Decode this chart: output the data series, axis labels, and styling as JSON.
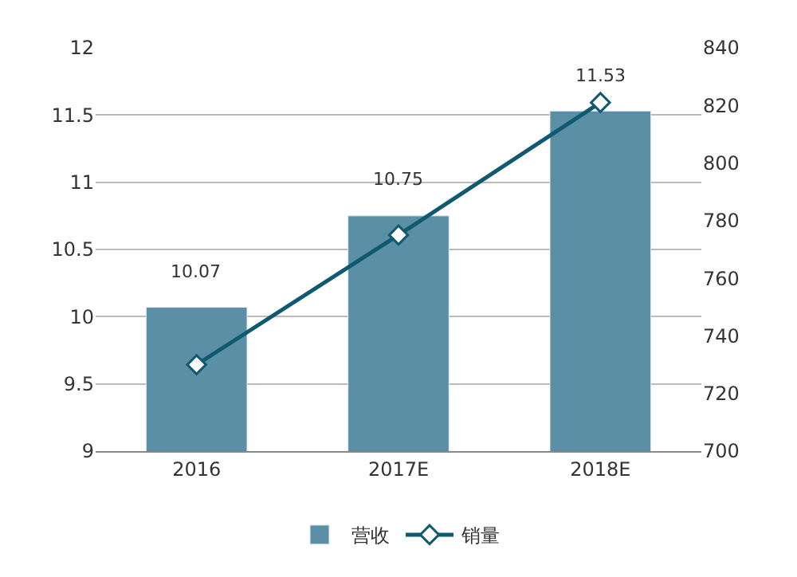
{
  "chart_data": {
    "type": "bar",
    "categories": [
      "2016",
      "2017E",
      "2018E"
    ],
    "series": [
      {
        "name": "营收",
        "color": "#5b8fa6",
        "values": [
          10.07,
          10.75,
          11.53
        ],
        "value_labels": [
          "10.07",
          "10.75",
          "11.53"
        ]
      },
      {
        "name": "销量",
        "type": "line",
        "axis": "y2",
        "color": "#0f5a70",
        "marker": "diamond",
        "values": [
          730,
          775,
          821
        ]
      }
    ],
    "ylim": [
      9,
      12
    ],
    "yticks": [
      9,
      9.5,
      10,
      10.5,
      11,
      11.5,
      12
    ],
    "y2lim": [
      700,
      840
    ],
    "y2ticks": [
      700,
      720,
      740,
      760,
      780,
      800,
      820,
      840
    ],
    "grid": "y",
    "legend": "bottom"
  }
}
